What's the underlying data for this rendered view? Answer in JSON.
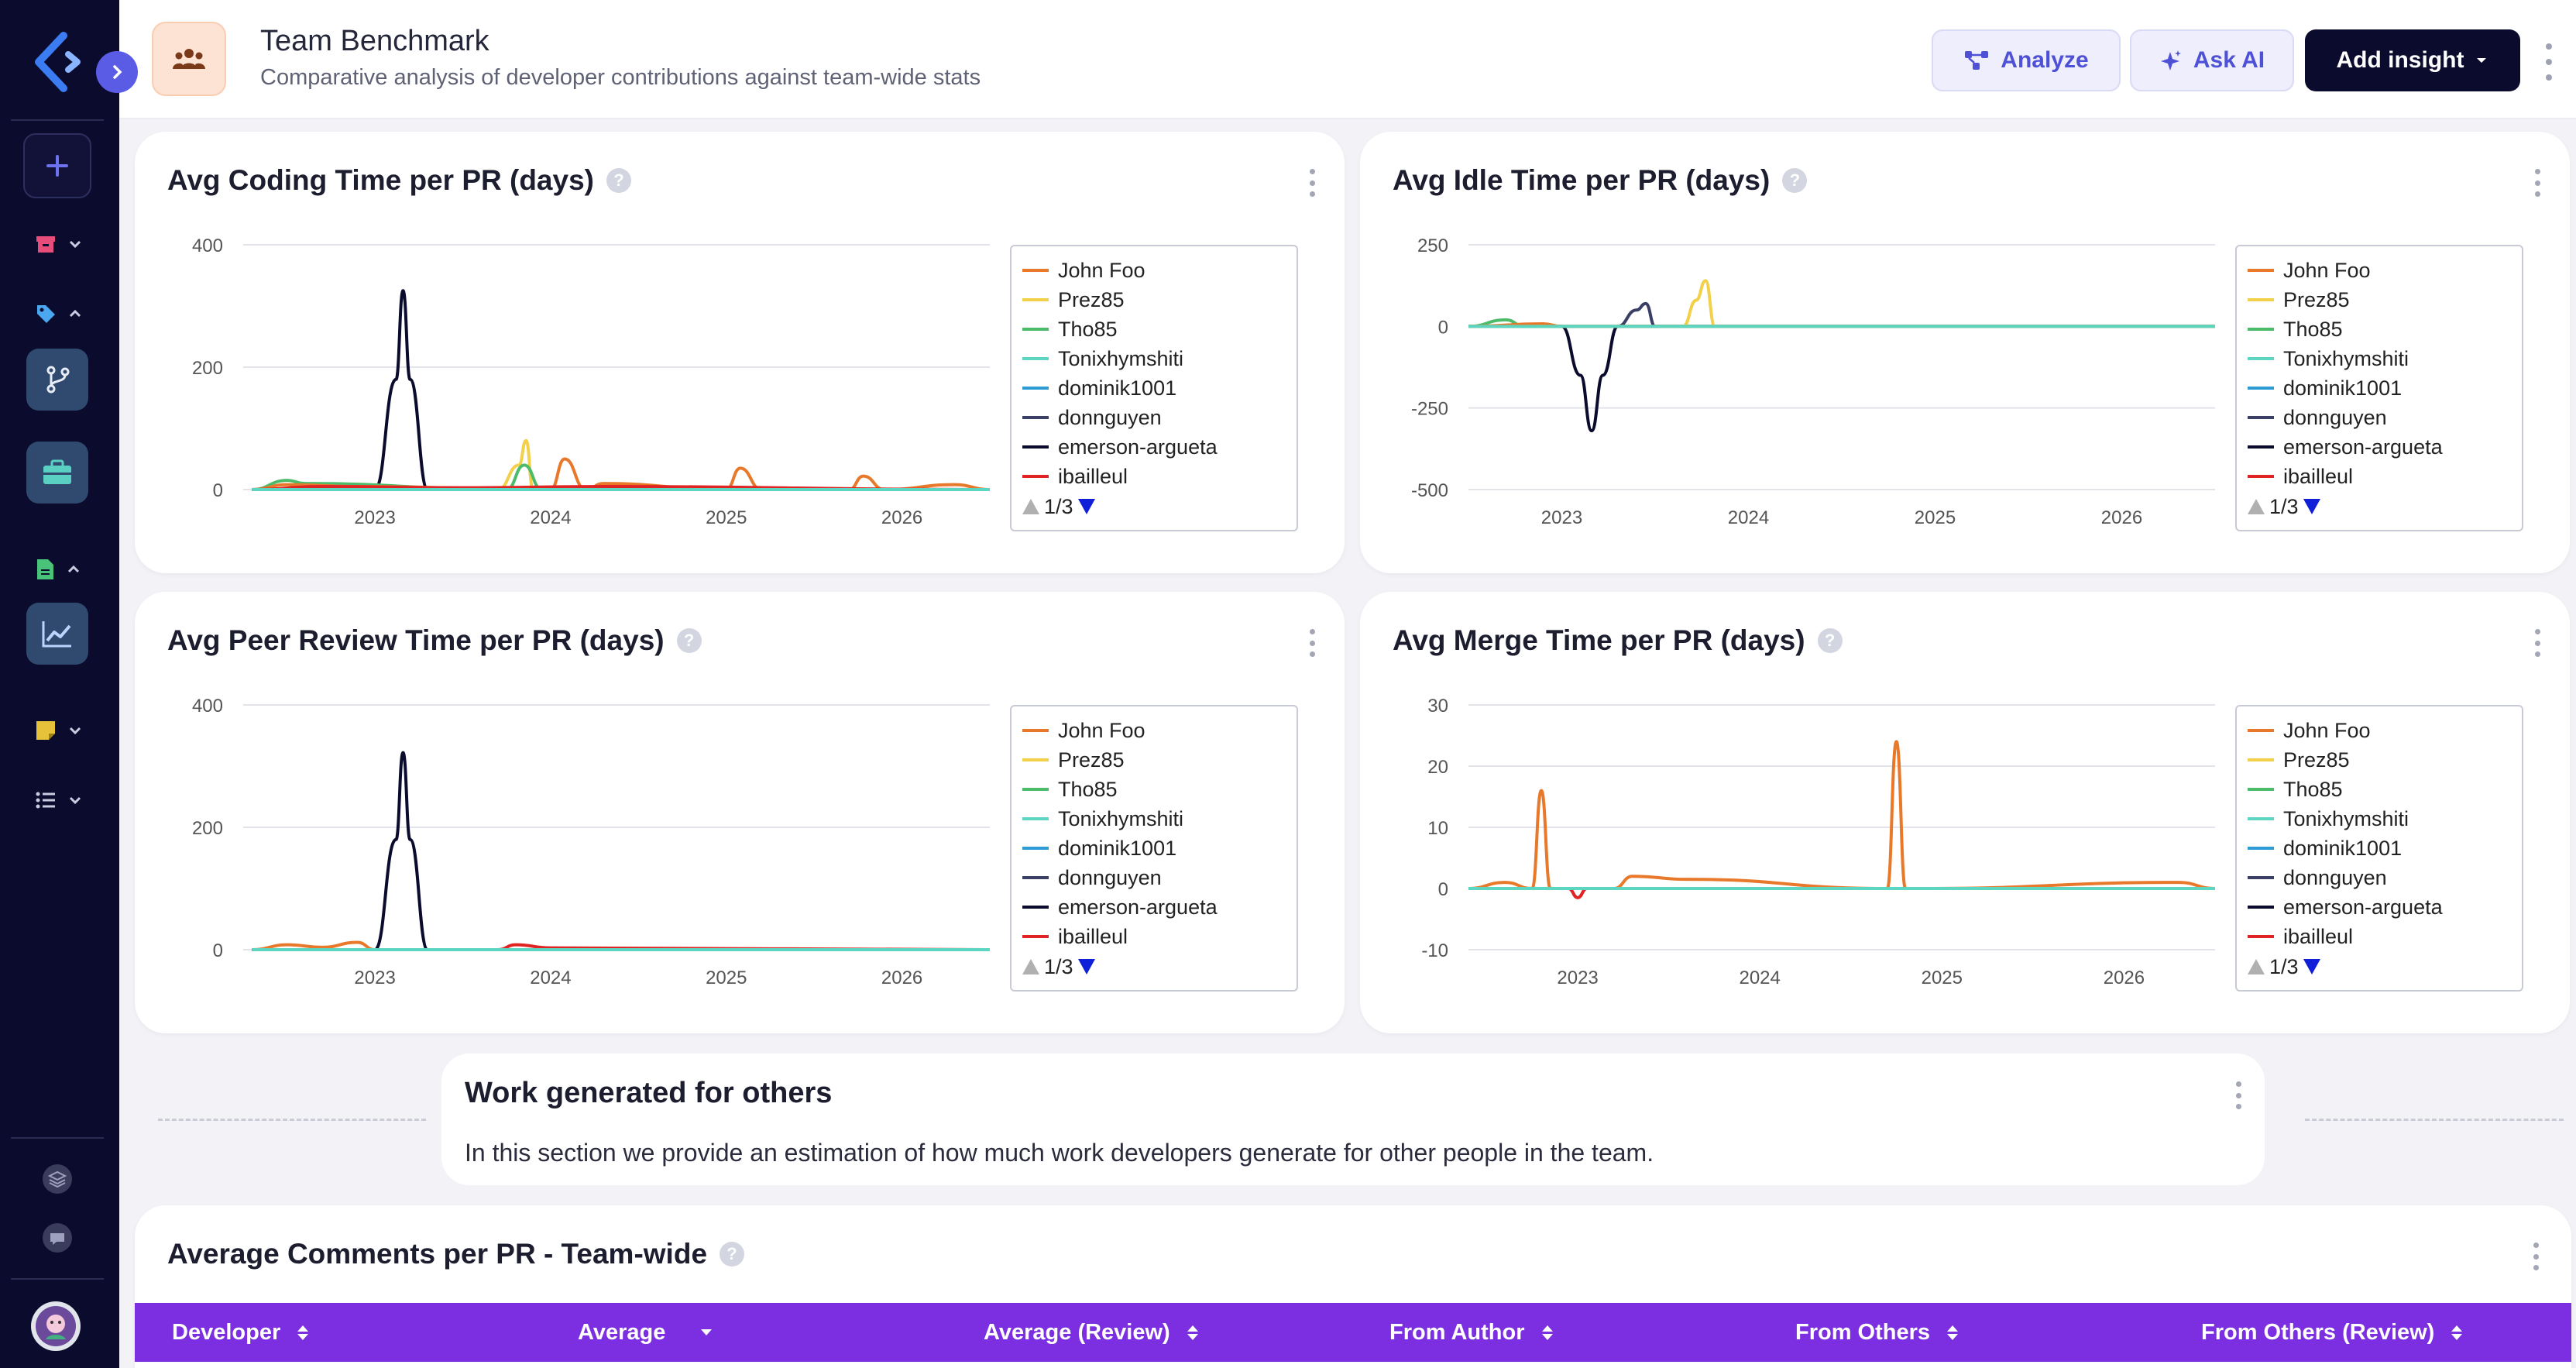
{
  "header": {
    "title": "Team Benchmark",
    "subtitle": "Comparative analysis of developer contributions against team-wide stats",
    "buttons": {
      "analyze": "Analyze",
      "ask_ai": "Ask AI",
      "add_insight": "Add insight"
    }
  },
  "legend_series": [
    {
      "name": "John Foo",
      "color": "#e8782a"
    },
    {
      "name": "Prez85",
      "color": "#f2d04a"
    },
    {
      "name": "Tho85",
      "color": "#4cbb6a"
    },
    {
      "name": "Tonixhymshiti",
      "color": "#5cd6c0"
    },
    {
      "name": "dominik1001",
      "color": "#2d9bd6"
    },
    {
      "name": "donnguyen",
      "color": "#3a3f66"
    },
    {
      "name": "emerson-argueta",
      "color": "#0b0b2e"
    },
    {
      "name": "ibailleul",
      "color": "#e02424"
    }
  ],
  "legend_pager": "1/3",
  "charts": {
    "coding": {
      "title": "Avg Coding Time per PR (days)"
    },
    "idle": {
      "title": "Avg Idle Time per PR (days)"
    },
    "review": {
      "title": "Avg Peer Review Time per PR (days)"
    },
    "merge": {
      "title": "Avg Merge Time per PR (days)"
    }
  },
  "chart_data": [
    {
      "type": "line",
      "title": "Avg Coding Time per PR (days)",
      "x_ticks": [
        "2023",
        "2024",
        "2025",
        "2026"
      ],
      "y_ticks": [
        0,
        200,
        400
      ],
      "ylim": [
        0,
        400
      ],
      "xlim": [
        2022.25,
        2026.5
      ],
      "series": [
        {
          "name": "emerson-argueta",
          "x": [
            2022.3,
            2023.0,
            2023.12,
            2023.16,
            2023.2,
            2023.3,
            2026.5
          ],
          "y": [
            0,
            0,
            180,
            325,
            180,
            0,
            0
          ]
        },
        {
          "name": "Prez85",
          "x": [
            2022.3,
            2023.7,
            2023.82,
            2023.86,
            2023.9,
            2026.5
          ],
          "y": [
            0,
            0,
            40,
            80,
            0,
            0
          ]
        },
        {
          "name": "Tho85",
          "x": [
            2022.3,
            2022.5,
            2022.6,
            2023.75,
            2023.85,
            2023.95,
            2026.5
          ],
          "y": [
            0,
            15,
            10,
            0,
            40,
            0,
            0
          ]
        },
        {
          "name": "John Foo",
          "x": [
            2022.3,
            2022.5,
            2022.9,
            2024.0,
            2024.08,
            2024.2,
            2024.3,
            2025.0,
            2025.08,
            2025.2,
            2025.7,
            2025.78,
            2025.9,
            2026.3,
            2026.5
          ],
          "y": [
            0,
            8,
            5,
            0,
            50,
            0,
            10,
            0,
            35,
            0,
            0,
            22,
            0,
            8,
            0
          ]
        },
        {
          "name": "ibailleul",
          "x": [
            2022.3,
            2022.7,
            2023.5,
            2024.3,
            2026.5
          ],
          "y": [
            0,
            5,
            3,
            5,
            0
          ]
        },
        {
          "name": "Tonixhymshiti",
          "x": [
            2022.3,
            2026.5
          ],
          "y": [
            0,
            0
          ]
        }
      ]
    },
    {
      "type": "line",
      "title": "Avg Idle Time per PR (days)",
      "x_ticks": [
        "2023",
        "2024",
        "2025",
        "2026"
      ],
      "y_ticks": [
        -500,
        -250,
        0,
        250
      ],
      "ylim": [
        -500,
        250
      ],
      "xlim": [
        2022.5,
        2026.5
      ],
      "series": [
        {
          "name": "emerson-argueta",
          "x": [
            2022.5,
            2023.0,
            2023.1,
            2023.16,
            2023.22,
            2023.3,
            2026.5
          ],
          "y": [
            0,
            0,
            -150,
            -320,
            -150,
            0,
            0
          ]
        },
        {
          "name": "donnguyen",
          "x": [
            2022.5,
            2023.3,
            2023.4,
            2023.45,
            2023.5,
            2026.5
          ],
          "y": [
            0,
            0,
            50,
            70,
            0,
            0
          ]
        },
        {
          "name": "Prez85",
          "x": [
            2022.5,
            2023.65,
            2023.72,
            2023.77,
            2023.82,
            2026.5
          ],
          "y": [
            0,
            0,
            80,
            140,
            0,
            0
          ]
        },
        {
          "name": "Tho85",
          "x": [
            2022.5,
            2022.7,
            2022.8,
            2026.5
          ],
          "y": [
            0,
            20,
            0,
            0
          ]
        },
        {
          "name": "John Foo",
          "x": [
            2022.5,
            2022.9,
            2023.0,
            2026.5
          ],
          "y": [
            0,
            8,
            0,
            0
          ]
        },
        {
          "name": "Tonixhymshiti",
          "x": [
            2022.5,
            2026.5
          ],
          "y": [
            0,
            0
          ]
        }
      ]
    },
    {
      "type": "line",
      "title": "Avg Peer Review Time per PR (days)",
      "x_ticks": [
        "2023",
        "2024",
        "2025",
        "2026"
      ],
      "y_ticks": [
        0,
        200,
        400
      ],
      "ylim": [
        0,
        400
      ],
      "xlim": [
        2022.25,
        2026.5
      ],
      "series": [
        {
          "name": "emerson-argueta",
          "x": [
            2022.3,
            2023.0,
            2023.12,
            2023.16,
            2023.2,
            2023.3,
            2026.5
          ],
          "y": [
            0,
            0,
            180,
            322,
            180,
            0,
            0
          ]
        },
        {
          "name": "John Foo",
          "x": [
            2022.3,
            2022.5,
            2022.7,
            2022.9,
            2023.0,
            2026.5
          ],
          "y": [
            0,
            8,
            4,
            12,
            0,
            0
          ]
        },
        {
          "name": "ibailleul",
          "x": [
            2022.3,
            2023.7,
            2023.8,
            2024.0,
            2026.5
          ],
          "y": [
            0,
            0,
            8,
            3,
            0
          ]
        },
        {
          "name": "Tonixhymshiti",
          "x": [
            2022.3,
            2026.5
          ],
          "y": [
            0,
            0
          ]
        }
      ]
    },
    {
      "type": "line",
      "title": "Avg Merge Time per PR (days)",
      "x_ticks": [
        "2023",
        "2024",
        "2025",
        "2026"
      ],
      "y_ticks": [
        -10,
        0,
        10,
        20,
        30
      ],
      "ylim": [
        -10,
        30
      ],
      "xlim": [
        2022.4,
        2026.5
      ],
      "series": [
        {
          "name": "John Foo",
          "x": [
            2022.4,
            2022.6,
            2022.75,
            2022.8,
            2022.85,
            2023.2,
            2023.3,
            2023.6,
            2024.7,
            2024.75,
            2024.8,
            2024.9,
            2026.3,
            2026.5
          ],
          "y": [
            0,
            1,
            0,
            16,
            0,
            0,
            2,
            1.5,
            0,
            24,
            0,
            0,
            1,
            0
          ]
        },
        {
          "name": "ibailleul",
          "x": [
            2022.4,
            2022.95,
            2023.0,
            2023.05,
            2026.5
          ],
          "y": [
            0,
            0,
            -1.5,
            0,
            0
          ]
        },
        {
          "name": "Tonixhymshiti",
          "x": [
            2022.4,
            2026.5
          ],
          "y": [
            0,
            0
          ]
        }
      ]
    }
  ],
  "section": {
    "title": "Work generated for others",
    "description": "In this section we provide an estimation of how much work developers generate for other people in the team."
  },
  "table": {
    "title": "Average Comments per PR - Team-wide",
    "columns": [
      "Developer",
      "Average",
      "Average (Review)",
      "From Author",
      "From Others",
      "From Others (Review)"
    ]
  }
}
